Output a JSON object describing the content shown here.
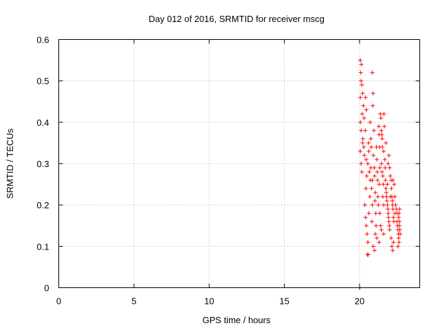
{
  "chart_data": {
    "type": "scatter",
    "title": "Day 012 of 2016, SRMTID for receiver mscg",
    "xlabel": "GPS time / hours",
    "ylabel": "SRMTID / TECUs",
    "xlim": [
      0,
      24
    ],
    "ylim": [
      0,
      0.6
    ],
    "xticks": [
      0,
      5,
      10,
      15,
      20
    ],
    "xtick_labels": [
      "0",
      "5",
      "10",
      "15",
      "20"
    ],
    "yticks": [
      0,
      0.1,
      0.2,
      0.3,
      0.4,
      0.5,
      0.6
    ],
    "ytick_labels": [
      "0",
      "0.1",
      "0.2",
      "0.3",
      "0.4",
      "0.5",
      "0.6"
    ],
    "grid": true,
    "marker": "plus",
    "color": "#ff0000",
    "points": [
      [
        20.0,
        0.0
      ],
      [
        20.02,
        0.0
      ],
      [
        20.05,
        0.55
      ],
      [
        20.12,
        0.54
      ],
      [
        20.08,
        0.52
      ],
      [
        20.1,
        0.5
      ],
      [
        20.15,
        0.49
      ],
      [
        20.05,
        0.46
      ],
      [
        20.2,
        0.47
      ],
      [
        20.05,
        0.4
      ],
      [
        20.1,
        0.38
      ],
      [
        20.18,
        0.42
      ],
      [
        20.25,
        0.44
      ],
      [
        20.3,
        0.41
      ],
      [
        20.22,
        0.36
      ],
      [
        20.05,
        0.33
      ],
      [
        20.1,
        0.3
      ],
      [
        20.15,
        0.28
      ],
      [
        20.2,
        0.35
      ],
      [
        20.28,
        0.34
      ],
      [
        20.32,
        0.32
      ],
      [
        20.4,
        0.46
      ],
      [
        20.45,
        0.43
      ],
      [
        20.38,
        0.38
      ],
      [
        20.45,
        0.31
      ],
      [
        20.48,
        0.27
      ],
      [
        20.42,
        0.24
      ],
      [
        20.35,
        0.2
      ],
      [
        20.4,
        0.17
      ],
      [
        20.45,
        0.15
      ],
      [
        20.5,
        0.13
      ],
      [
        20.55,
        0.11
      ],
      [
        20.52,
        0.08
      ],
      [
        20.58,
        0.08
      ],
      [
        20.6,
        0.35
      ],
      [
        20.62,
        0.33
      ],
      [
        20.55,
        0.3
      ],
      [
        20.65,
        0.28
      ],
      [
        20.68,
        0.22
      ],
      [
        20.62,
        0.18
      ],
      [
        20.7,
        0.4
      ],
      [
        20.75,
        0.36
      ],
      [
        20.78,
        0.34
      ],
      [
        20.72,
        0.26
      ],
      [
        20.8,
        0.24
      ],
      [
        20.85,
        0.2
      ],
      [
        20.82,
        0.16
      ],
      [
        20.85,
        0.52
      ],
      [
        20.9,
        0.47
      ],
      [
        20.88,
        0.44
      ],
      [
        20.95,
        0.38
      ],
      [
        20.92,
        0.32
      ],
      [
        20.98,
        0.29
      ],
      [
        21.0,
        0.27
      ],
      [
        21.05,
        0.23
      ],
      [
        21.02,
        0.21
      ],
      [
        21.08,
        0.18
      ],
      [
        21.1,
        0.15
      ],
      [
        21.05,
        0.13
      ],
      [
        21.12,
        0.34
      ],
      [
        21.15,
        0.31
      ],
      [
        21.18,
        0.28
      ],
      [
        21.2,
        0.26
      ],
      [
        21.22,
        0.22
      ],
      [
        21.25,
        0.2
      ],
      [
        21.28,
        0.39
      ],
      [
        21.3,
        0.37
      ],
      [
        21.33,
        0.34
      ],
      [
        21.3,
        0.25
      ],
      [
        21.35,
        0.18
      ],
      [
        21.4,
        0.15
      ],
      [
        21.38,
        0.42
      ],
      [
        21.42,
        0.41
      ],
      [
        21.45,
        0.38
      ],
      [
        21.48,
        0.37
      ],
      [
        21.5,
        0.36
      ],
      [
        21.52,
        0.34
      ],
      [
        21.45,
        0.3
      ],
      [
        21.5,
        0.28
      ],
      [
        21.55,
        0.27
      ],
      [
        21.58,
        0.25
      ],
      [
        21.55,
        0.22
      ],
      [
        21.6,
        0.2
      ],
      [
        21.62,
        0.42
      ],
      [
        21.65,
        0.39
      ],
      [
        21.6,
        0.33
      ],
      [
        21.68,
        0.31
      ],
      [
        21.7,
        0.29
      ],
      [
        21.72,
        0.26
      ],
      [
        21.75,
        0.24
      ],
      [
        21.78,
        0.23
      ],
      [
        21.8,
        0.22
      ],
      [
        21.82,
        0.21
      ],
      [
        21.85,
        0.2
      ],
      [
        21.88,
        0.19
      ],
      [
        21.9,
        0.18
      ],
      [
        21.92,
        0.17
      ],
      [
        21.95,
        0.16
      ],
      [
        21.98,
        0.15
      ],
      [
        22.0,
        0.14
      ],
      [
        21.85,
        0.25
      ],
      [
        21.9,
        0.3
      ],
      [
        21.95,
        0.32
      ],
      [
        22.0,
        0.29
      ],
      [
        22.05,
        0.27
      ],
      [
        22.1,
        0.26
      ],
      [
        22.12,
        0.24
      ],
      [
        22.15,
        0.22
      ],
      [
        22.18,
        0.21
      ],
      [
        22.2,
        0.2
      ],
      [
        22.22,
        0.19
      ],
      [
        22.25,
        0.17
      ],
      [
        22.28,
        0.16
      ],
      [
        22.1,
        0.12
      ],
      [
        22.15,
        0.1
      ],
      [
        22.2,
        0.09
      ],
      [
        22.25,
        0.11
      ],
      [
        22.22,
        0.26
      ],
      [
        22.3,
        0.25
      ],
      [
        22.35,
        0.22
      ],
      [
        22.4,
        0.2
      ],
      [
        22.45,
        0.19
      ],
      [
        22.5,
        0.18
      ],
      [
        22.48,
        0.16
      ],
      [
        22.52,
        0.15
      ],
      [
        22.55,
        0.14
      ],
      [
        22.58,
        0.13
      ],
      [
        22.6,
        0.12
      ],
      [
        22.62,
        0.11
      ],
      [
        22.55,
        0.1
      ],
      [
        22.65,
        0.15
      ],
      [
        22.6,
        0.17
      ],
      [
        22.62,
        0.18
      ],
      [
        22.65,
        0.16
      ],
      [
        22.68,
        0.14
      ],
      [
        22.7,
        0.13
      ],
      [
        22.66,
        0.19
      ],
      [
        20.9,
        0.1
      ],
      [
        21.0,
        0.09
      ],
      [
        21.15,
        0.12
      ],
      [
        21.3,
        0.11
      ],
      [
        21.45,
        0.14
      ],
      [
        21.6,
        0.13
      ],
      [
        20.75,
        0.29
      ],
      [
        20.85,
        0.26
      ],
      [
        21.35,
        0.29
      ],
      [
        21.75,
        0.35
      ],
      [
        22.05,
        0.22
      ],
      [
        22.35,
        0.18
      ]
    ]
  }
}
